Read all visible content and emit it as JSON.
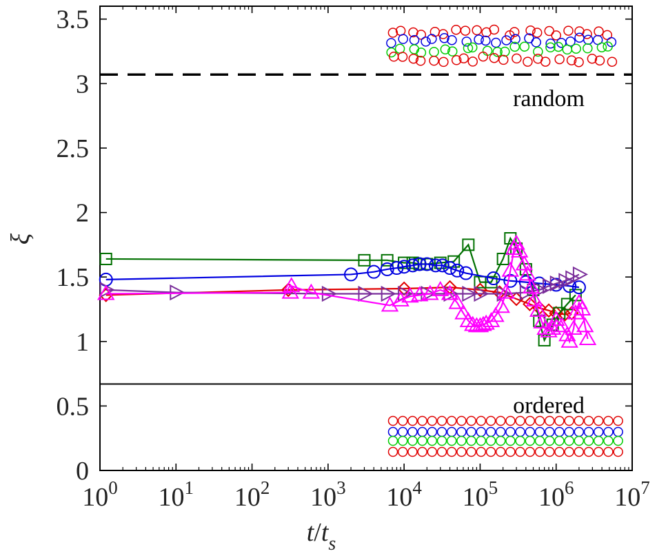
{
  "chart_data": {
    "type": "line",
    "xscale": "log",
    "xlim": [
      1,
      10000000
    ],
    "ylim": [
      0,
      3.6
    ],
    "grid": false,
    "legend": "none",
    "x_tick_labels": [
      {
        "base": "10",
        "exp": "0"
      },
      {
        "base": "10",
        "exp": "1"
      },
      {
        "base": "10",
        "exp": "2"
      },
      {
        "base": "10",
        "exp": "3"
      },
      {
        "base": "10",
        "exp": "4"
      },
      {
        "base": "10",
        "exp": "5"
      },
      {
        "base": "10",
        "exp": "6"
      },
      {
        "base": "10",
        "exp": "7"
      }
    ],
    "y_ticks": [
      0,
      0.5,
      1,
      1.5,
      2,
      2.5,
      3,
      3.5
    ],
    "y_tick_labels": [
      "0",
      "0.5",
      "1",
      "1.5",
      "2",
      "2.5",
      "3",
      "3.5"
    ],
    "xlabel": {
      "t": "t",
      "slash": "/",
      "t2": "t",
      "sub": "s"
    },
    "ylabel": "ξ",
    "reference_lines": [
      {
        "label": "random",
        "y": 3.07,
        "style": "dashed",
        "color": "#000000"
      },
      {
        "label": "ordered",
        "y": 0.67,
        "style": "solid",
        "color": "#000000"
      }
    ],
    "series": [
      {
        "marker": "diamond",
        "color": "#e00000",
        "points": [
          [
            1.2,
            1.36
          ],
          [
            300,
            1.4
          ],
          [
            10000,
            1.41
          ],
          [
            40000,
            1.42
          ],
          [
            100000,
            1.4
          ],
          [
            180000,
            1.38
          ],
          [
            300000,
            1.33
          ],
          [
            450000,
            1.29
          ],
          [
            600000,
            1.26
          ],
          [
            800000,
            1.24
          ],
          [
            1000000,
            1.22
          ],
          [
            1300000,
            1.21
          ],
          [
            1600000,
            1.22
          ]
        ]
      },
      {
        "marker": "square",
        "color": "#007000",
        "points": [
          [
            1.2,
            1.64
          ],
          [
            3000,
            1.63
          ],
          [
            6000,
            1.63
          ],
          [
            10000,
            1.61
          ],
          [
            13000,
            1.61
          ],
          [
            16000,
            1.6
          ],
          [
            20000,
            1.6
          ],
          [
            30000,
            1.61
          ],
          [
            45000,
            1.62
          ],
          [
            70000,
            1.75
          ],
          [
            100000,
            1.46
          ],
          [
            140000,
            1.46
          ],
          [
            200000,
            1.64
          ],
          [
            250000,
            1.8
          ],
          [
            300000,
            1.72
          ],
          [
            400000,
            1.56
          ],
          [
            500000,
            1.4
          ],
          [
            600000,
            1.16
          ],
          [
            700000,
            1.01
          ],
          [
            900000,
            1.13
          ],
          [
            1100000,
            1.22
          ],
          [
            1400000,
            1.29
          ],
          [
            1800000,
            1.36
          ]
        ]
      },
      {
        "marker": "circle",
        "color": "#0000e0",
        "points": [
          [
            1.2,
            1.48
          ],
          [
            2000,
            1.52
          ],
          [
            4000,
            1.54
          ],
          [
            6000,
            1.56
          ],
          [
            8000,
            1.57
          ],
          [
            10000,
            1.58
          ],
          [
            13000,
            1.59
          ],
          [
            16000,
            1.6
          ],
          [
            20000,
            1.6
          ],
          [
            26000,
            1.59
          ],
          [
            32000,
            1.59
          ],
          [
            40000,
            1.57
          ],
          [
            50000,
            1.55
          ],
          [
            65000,
            1.53
          ],
          [
            150000,
            1.49
          ],
          [
            250000,
            1.47
          ],
          [
            400000,
            1.46
          ],
          [
            600000,
            1.45
          ],
          [
            1000000,
            1.44
          ],
          [
            1500000,
            1.43
          ],
          [
            2000000,
            1.42
          ]
        ]
      },
      {
        "marker": "triangle-right",
        "color": "#7a2e9a",
        "points": [
          [
            1.2,
            1.4
          ],
          [
            10,
            1.38
          ],
          [
            1000,
            1.37
          ],
          [
            3000,
            1.37
          ],
          [
            6000,
            1.37
          ],
          [
            10000,
            1.37
          ],
          [
            20000,
            1.37
          ],
          [
            40000,
            1.37
          ],
          [
            70000,
            1.37
          ],
          [
            100000,
            1.37
          ],
          [
            200000,
            1.37
          ],
          [
            400000,
            1.38
          ],
          [
            600000,
            1.4
          ],
          [
            800000,
            1.43
          ],
          [
            1000000,
            1.45
          ],
          [
            1300000,
            1.47
          ],
          [
            1600000,
            1.49
          ],
          [
            2000000,
            1.52
          ]
        ]
      },
      {
        "marker": "triangle-up",
        "color": "#ff00ff",
        "points": [
          [
            1.2,
            1.37
          ],
          [
            320,
            1.38
          ],
          [
            330,
            1.43
          ],
          [
            600,
            1.38
          ],
          [
            6500,
            1.28
          ],
          [
            9000,
            1.32
          ],
          [
            12000,
            1.35
          ],
          [
            16000,
            1.36
          ],
          [
            22000,
            1.37
          ],
          [
            30000,
            1.4
          ],
          [
            40000,
            1.37
          ],
          [
            50000,
            1.3
          ],
          [
            60000,
            1.22
          ],
          [
            70000,
            1.16
          ],
          [
            80000,
            1.13
          ],
          [
            90000,
            1.12
          ],
          [
            100000,
            1.12
          ],
          [
            110000,
            1.13
          ],
          [
            120000,
            1.14
          ],
          [
            140000,
            1.16
          ],
          [
            160000,
            1.2
          ],
          [
            190000,
            1.27
          ],
          [
            220000,
            1.38
          ],
          [
            250000,
            1.55
          ],
          [
            280000,
            1.72
          ],
          [
            300000,
            1.76
          ],
          [
            330000,
            1.7
          ],
          [
            380000,
            1.6
          ],
          [
            420000,
            1.52
          ],
          [
            470000,
            1.42
          ],
          [
            520000,
            1.32
          ],
          [
            580000,
            1.24
          ],
          [
            650000,
            1.15
          ],
          [
            720000,
            1.1
          ],
          [
            800000,
            1.08
          ],
          [
            900000,
            1.1
          ],
          [
            1000000,
            1.17
          ],
          [
            1200000,
            1.12
          ],
          [
            1400000,
            1.05
          ],
          [
            1500000,
            1.0
          ],
          [
            1700000,
            1.1
          ],
          [
            1800000,
            1.22
          ],
          [
            2000000,
            1.3
          ],
          [
            2200000,
            1.25
          ],
          [
            2400000,
            1.12
          ],
          [
            2600000,
            1.02
          ]
        ]
      }
    ]
  }
}
